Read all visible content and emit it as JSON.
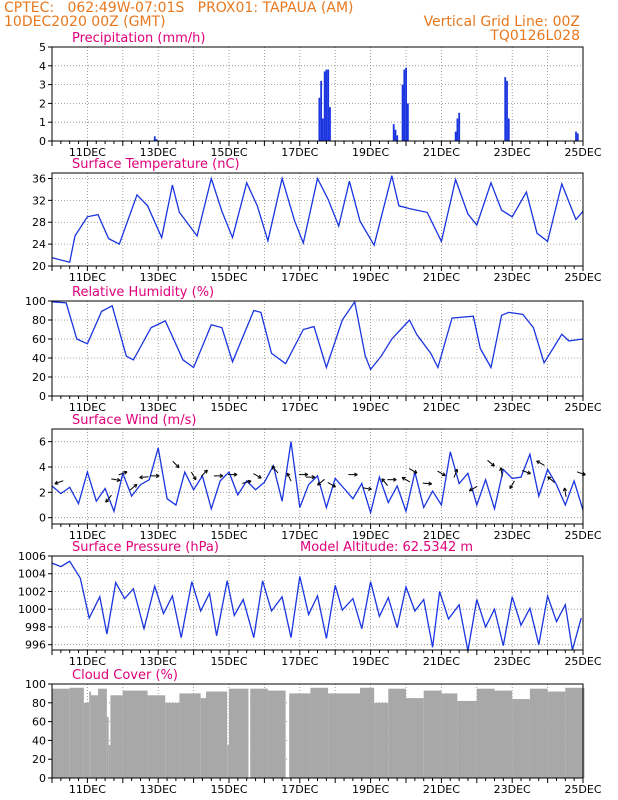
{
  "header": {
    "line1": "CPTEC:   062:49W-07:01S   PROX01: TAPAUA (AM)",
    "line2": "10DEC2020 00Z (GMT)",
    "grid_note": "Vertical Grid Line: 00Z",
    "code": "TQ0126L028"
  },
  "colors": {
    "header": "#e8781e",
    "title": "#e0007a",
    "line": "#1a35e0",
    "cloud": "#a8a8a8"
  },
  "x_axis": {
    "start_day": 10,
    "end_day": 25,
    "tick_labels": [
      "11DEC",
      "13DEC",
      "15DEC",
      "17DEC",
      "19DEC",
      "21DEC",
      "23DEC",
      "25DEC"
    ]
  },
  "chart_data": [
    {
      "type": "bar",
      "title": "Precipitation (mm/h)",
      "ylim": [
        0,
        5
      ],
      "yticks": [
        "0",
        "1",
        "2",
        "3",
        "4",
        "5"
      ],
      "points": [
        [
          12.9,
          0.25
        ],
        [
          12.95,
          0.1
        ],
        [
          17.55,
          2.3
        ],
        [
          17.6,
          3.2
        ],
        [
          17.65,
          1.2
        ],
        [
          17.7,
          3.7
        ],
        [
          17.75,
          3.8
        ],
        [
          17.8,
          3.8
        ],
        [
          17.85,
          1.8
        ],
        [
          19.65,
          0.9
        ],
        [
          19.7,
          0.6
        ],
        [
          19.75,
          0.3
        ],
        [
          19.9,
          3.0
        ],
        [
          19.95,
          3.8
        ],
        [
          20.0,
          3.9
        ],
        [
          20.05,
          2.0
        ],
        [
          21.4,
          0.5
        ],
        [
          21.45,
          1.2
        ],
        [
          21.5,
          1.5
        ],
        [
          22.8,
          3.4
        ],
        [
          22.85,
          3.2
        ],
        [
          22.9,
          1.2
        ],
        [
          24.8,
          0.5
        ],
        [
          24.85,
          0.4
        ]
      ]
    },
    {
      "type": "line",
      "title": "Surface Temperature (nC)",
      "ylim": [
        20,
        37
      ],
      "yticks": [
        "20",
        "24",
        "28",
        "32",
        "36"
      ],
      "points": [
        [
          10.0,
          21.5
        ],
        [
          10.5,
          20.7
        ],
        [
          10.65,
          25.5
        ],
        [
          11.0,
          29.0
        ],
        [
          11.3,
          29.4
        ],
        [
          11.6,
          25.0
        ],
        [
          11.9,
          24.0
        ],
        [
          12.4,
          33.0
        ],
        [
          12.7,
          31.0
        ],
        [
          13.1,
          25.2
        ],
        [
          13.4,
          34.8
        ],
        [
          13.6,
          29.8
        ],
        [
          14.1,
          25.5
        ],
        [
          14.5,
          36.0
        ],
        [
          14.8,
          30.0
        ],
        [
          15.1,
          25.2
        ],
        [
          15.5,
          35.2
        ],
        [
          15.8,
          31.0
        ],
        [
          16.1,
          24.6
        ],
        [
          16.5,
          36.0
        ],
        [
          16.85,
          28.3
        ],
        [
          17.1,
          24.2
        ],
        [
          17.5,
          36.0
        ],
        [
          17.8,
          32.2
        ],
        [
          18.1,
          27.3
        ],
        [
          18.4,
          35.5
        ],
        [
          18.7,
          28.2
        ],
        [
          19.1,
          23.8
        ],
        [
          19.6,
          36.5
        ],
        [
          19.8,
          31.0
        ],
        [
          20.1,
          30.5
        ],
        [
          20.6,
          29.8
        ],
        [
          21.0,
          24.5
        ],
        [
          21.4,
          35.8
        ],
        [
          21.75,
          29.5
        ],
        [
          22.0,
          27.5
        ],
        [
          22.4,
          35.2
        ],
        [
          22.7,
          30.2
        ],
        [
          23.0,
          29.0
        ],
        [
          23.4,
          33.5
        ],
        [
          23.7,
          26.0
        ],
        [
          24.0,
          24.5
        ],
        [
          24.4,
          35.0
        ],
        [
          24.8,
          28.5
        ],
        [
          25.0,
          30.0
        ]
      ]
    },
    {
      "type": "line",
      "title": "Relative Humidity (%)",
      "ylim": [
        0,
        100
      ],
      "yticks": [
        "0",
        "20",
        "40",
        "60",
        "80",
        "100"
      ],
      "points": [
        [
          10.0,
          99
        ],
        [
          10.4,
          98
        ],
        [
          10.7,
          60
        ],
        [
          11.0,
          55
        ],
        [
          11.4,
          89
        ],
        [
          11.7,
          95
        ],
        [
          12.1,
          42
        ],
        [
          12.3,
          38
        ],
        [
          12.8,
          72
        ],
        [
          13.2,
          79
        ],
        [
          13.7,
          38
        ],
        [
          14.0,
          30
        ],
        [
          14.5,
          75
        ],
        [
          14.8,
          72
        ],
        [
          15.1,
          36
        ],
        [
          15.7,
          90
        ],
        [
          15.9,
          88
        ],
        [
          16.2,
          45
        ],
        [
          16.6,
          34
        ],
        [
          17.1,
          70
        ],
        [
          17.4,
          73
        ],
        [
          17.75,
          30
        ],
        [
          18.2,
          80
        ],
        [
          18.55,
          99
        ],
        [
          18.85,
          42
        ],
        [
          19.0,
          28
        ],
        [
          19.3,
          42
        ],
        [
          19.6,
          60
        ],
        [
          19.8,
          68
        ],
        [
          20.1,
          80
        ],
        [
          20.3,
          65
        ],
        [
          20.7,
          45
        ],
        [
          20.9,
          30
        ],
        [
          21.3,
          82
        ],
        [
          21.6,
          83
        ],
        [
          21.9,
          84
        ],
        [
          22.1,
          50
        ],
        [
          22.4,
          30
        ],
        [
          22.7,
          85
        ],
        [
          22.9,
          88
        ],
        [
          23.3,
          86
        ],
        [
          23.6,
          72
        ],
        [
          23.9,
          35
        ],
        [
          24.4,
          65
        ],
        [
          24.6,
          58
        ],
        [
          25.0,
          60
        ]
      ]
    },
    {
      "type": "line",
      "title": "Surface Wind (m/s)",
      "ylim": [
        -0.5,
        7.0
      ],
      "yticks": [
        "0",
        "2",
        "4",
        "6"
      ],
      "points": [
        [
          10.0,
          2.5
        ],
        [
          10.25,
          1.9
        ],
        [
          10.5,
          2.4
        ],
        [
          10.75,
          1.1
        ],
        [
          11.0,
          3.6
        ],
        [
          11.25,
          1.3
        ],
        [
          11.5,
          2.3
        ],
        [
          11.75,
          0.5
        ],
        [
          12.0,
          3.5
        ],
        [
          12.25,
          1.7
        ],
        [
          12.5,
          2.6
        ],
        [
          12.75,
          3.0
        ],
        [
          13.0,
          5.5
        ],
        [
          13.25,
          1.5
        ],
        [
          13.5,
          1.0
        ],
        [
          13.75,
          3.6
        ],
        [
          14.0,
          2.2
        ],
        [
          14.25,
          3.3
        ],
        [
          14.5,
          0.7
        ],
        [
          14.75,
          2.9
        ],
        [
          15.0,
          3.6
        ],
        [
          15.25,
          1.8
        ],
        [
          15.5,
          2.9
        ],
        [
          15.75,
          2.2
        ],
        [
          16.0,
          2.8
        ],
        [
          16.25,
          4.1
        ],
        [
          16.5,
          1.3
        ],
        [
          16.75,
          6.0
        ],
        [
          17.0,
          0.8
        ],
        [
          17.25,
          2.6
        ],
        [
          17.5,
          3.3
        ],
        [
          17.75,
          0.8
        ],
        [
          18.0,
          3.1
        ],
        [
          18.25,
          2.3
        ],
        [
          18.5,
          1.5
        ],
        [
          18.75,
          2.7
        ],
        [
          19.0,
          0.4
        ],
        [
          19.25,
          3.2
        ],
        [
          19.5,
          1.2
        ],
        [
          19.75,
          2.5
        ],
        [
          20.0,
          0.5
        ],
        [
          20.25,
          3.6
        ],
        [
          20.5,
          0.8
        ],
        [
          20.75,
          2.1
        ],
        [
          21.0,
          1.0
        ],
        [
          21.25,
          5.2
        ],
        [
          21.5,
          2.7
        ],
        [
          21.75,
          3.5
        ],
        [
          22.0,
          1.0
        ],
        [
          22.25,
          3.0
        ],
        [
          22.5,
          0.7
        ],
        [
          22.75,
          3.8
        ],
        [
          23.0,
          3.1
        ],
        [
          23.25,
          3.2
        ],
        [
          23.5,
          5.0
        ],
        [
          23.75,
          1.7
        ],
        [
          24.0,
          3.8
        ],
        [
          24.25,
          2.6
        ],
        [
          24.5,
          1.0
        ],
        [
          24.75,
          2.9
        ],
        [
          25.0,
          0.6
        ]
      ],
      "arrows": [
        [
          10.2,
          2.8,
          200
        ],
        [
          11.6,
          1.5,
          230
        ],
        [
          11.8,
          3.0,
          350
        ],
        [
          12.0,
          3.5,
          20
        ],
        [
          12.3,
          2.4,
          40
        ],
        [
          12.6,
          3.2,
          185
        ],
        [
          12.9,
          3.3,
          0
        ],
        [
          13.5,
          4.2,
          315
        ],
        [
          14.0,
          3.3,
          300
        ],
        [
          14.3,
          3.5,
          45
        ],
        [
          14.7,
          3.3,
          0
        ],
        [
          15.1,
          3.4,
          0
        ],
        [
          15.5,
          2.8,
          15
        ],
        [
          15.8,
          3.3,
          330
        ],
        [
          16.3,
          3.8,
          130
        ],
        [
          16.7,
          3.2,
          115
        ],
        [
          17.1,
          3.4,
          0
        ],
        [
          17.3,
          3.2,
          0
        ],
        [
          17.6,
          2.8,
          220
        ],
        [
          17.9,
          2.6,
          330
        ],
        [
          18.5,
          3.4,
          0
        ],
        [
          18.9,
          2.3,
          350
        ],
        [
          19.4,
          2.8,
          130
        ],
        [
          19.6,
          3.0,
          0
        ],
        [
          20.0,
          3.0,
          150
        ],
        [
          20.2,
          3.7,
          330
        ],
        [
          20.6,
          2.7,
          355
        ],
        [
          21.0,
          3.5,
          330
        ],
        [
          21.4,
          3.5,
          70
        ],
        [
          21.9,
          2.3,
          210
        ],
        [
          22.4,
          4.3,
          320
        ],
        [
          22.7,
          3.6,
          100
        ],
        [
          23.0,
          2.6,
          240
        ],
        [
          23.4,
          3.6,
          340
        ],
        [
          23.8,
          4.3,
          150
        ],
        [
          24.1,
          3.0,
          140
        ],
        [
          24.5,
          2.0,
          100
        ],
        [
          24.95,
          3.5,
          340
        ]
      ]
    },
    {
      "type": "line",
      "title": "Surface Pressure (hPa)",
      "annotation": "Model Altitude: 62.5342 m",
      "ylim": [
        995.4,
        1006
      ],
      "yticks": [
        "996",
        "998",
        "1000",
        "1002",
        "1004",
        "1006"
      ],
      "points": [
        [
          10.0,
          1005.2
        ],
        [
          10.25,
          1004.8
        ],
        [
          10.5,
          1005.4
        ],
        [
          10.8,
          1003.5
        ],
        [
          11.05,
          999.0
        ],
        [
          11.35,
          1001.4
        ],
        [
          11.55,
          997.2
        ],
        [
          11.8,
          1003.0
        ],
        [
          12.05,
          1001.2
        ],
        [
          12.3,
          1002.3
        ],
        [
          12.6,
          997.8
        ],
        [
          12.9,
          1002.6
        ],
        [
          13.15,
          999.5
        ],
        [
          13.4,
          1001.5
        ],
        [
          13.65,
          996.8
        ],
        [
          13.95,
          1003.1
        ],
        [
          14.2,
          999.8
        ],
        [
          14.45,
          1001.8
        ],
        [
          14.65,
          997.0
        ],
        [
          14.95,
          1003.2
        ],
        [
          15.15,
          999.3
        ],
        [
          15.4,
          1001.1
        ],
        [
          15.7,
          996.8
        ],
        [
          15.95,
          1003.2
        ],
        [
          16.2,
          999.8
        ],
        [
          16.5,
          1001.4
        ],
        [
          16.75,
          996.8
        ],
        [
          17.0,
          1003.7
        ],
        [
          17.25,
          999.4
        ],
        [
          17.5,
          1001.5
        ],
        [
          17.75,
          996.7
        ],
        [
          18.0,
          1002.7
        ],
        [
          18.2,
          999.9
        ],
        [
          18.5,
          1001.2
        ],
        [
          18.75,
          997.8
        ],
        [
          19.0,
          1003.1
        ],
        [
          19.25,
          999.2
        ],
        [
          19.5,
          1001.3
        ],
        [
          19.75,
          997.9
        ],
        [
          20.0,
          1002.5
        ],
        [
          20.25,
          999.8
        ],
        [
          20.5,
          1001.1
        ],
        [
          20.75,
          995.7
        ],
        [
          20.95,
          1002.0
        ],
        [
          21.2,
          998.9
        ],
        [
          21.5,
          1000.5
        ],
        [
          21.75,
          995.3
        ],
        [
          22.0,
          1001.1
        ],
        [
          22.25,
          998.0
        ],
        [
          22.5,
          1000.0
        ],
        [
          22.75,
          995.9
        ],
        [
          23.0,
          1001.4
        ],
        [
          23.25,
          998.2
        ],
        [
          23.5,
          1000.1
        ],
        [
          23.75,
          996.0
        ],
        [
          24.0,
          1001.5
        ],
        [
          24.25,
          998.6
        ],
        [
          24.5,
          1000.5
        ],
        [
          24.7,
          995.4
        ],
        [
          24.95,
          999.0
        ]
      ]
    },
    {
      "type": "bar",
      "title": "Cloud Cover (%)",
      "ylim": [
        0,
        100
      ],
      "yticks": [
        "0",
        "20",
        "40",
        "60",
        "80",
        "100"
      ],
      "points": [
        [
          10.0,
          95
        ],
        [
          10.5,
          96
        ],
        [
          10.9,
          80
        ],
        [
          11.05,
          92
        ],
        [
          11.1,
          88
        ],
        [
          11.3,
          95
        ],
        [
          11.55,
          65
        ],
        [
          11.6,
          35
        ],
        [
          11.65,
          88
        ],
        [
          12.0,
          93
        ],
        [
          12.7,
          88
        ],
        [
          13.2,
          80
        ],
        [
          13.6,
          90
        ],
        [
          14.2,
          85
        ],
        [
          14.35,
          92
        ],
        [
          14.95,
          35
        ],
        [
          15.0,
          95
        ],
        [
          15.55,
          0
        ],
        [
          15.6,
          95
        ],
        [
          16.1,
          93
        ],
        [
          16.6,
          0
        ],
        [
          16.7,
          90
        ],
        [
          17.3,
          96
        ],
        [
          17.8,
          90
        ],
        [
          18.7,
          96
        ],
        [
          19.1,
          80
        ],
        [
          19.5,
          95
        ],
        [
          20.0,
          85
        ],
        [
          20.5,
          93
        ],
        [
          21.0,
          90
        ],
        [
          21.45,
          82
        ],
        [
          22.0,
          95
        ],
        [
          22.5,
          93
        ],
        [
          23.0,
          84
        ],
        [
          23.5,
          95
        ],
        [
          24.0,
          92
        ],
        [
          24.5,
          96
        ],
        [
          25.0,
          96
        ]
      ]
    }
  ]
}
